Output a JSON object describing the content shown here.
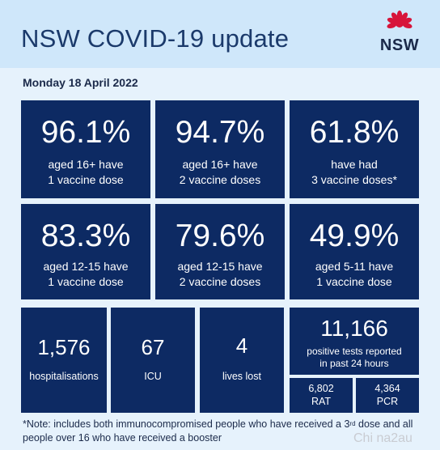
{
  "header": {
    "title": "NSW COVID-19 update",
    "logo_text": "NSW"
  },
  "date": "Monday 18 April 2022",
  "vaccination_tiles": [
    {
      "value": "96.1%",
      "caption": "aged 16+ have\n1 vaccine dose"
    },
    {
      "value": "94.7%",
      "caption": "aged 16+ have\n2 vaccine doses"
    },
    {
      "value": "61.8%",
      "caption": "have had\n3 vaccine doses*"
    },
    {
      "value": "83.3%",
      "caption": "aged 12-15 have\n1 vaccine dose"
    },
    {
      "value": "79.6%",
      "caption": "aged 12-15 have\n2 vaccine doses"
    },
    {
      "value": "49.9%",
      "caption": "aged 5-11 have\n1 vaccine dose"
    }
  ],
  "stats": {
    "hospitalisations": {
      "value": "1,576",
      "label": "hospitalisations"
    },
    "icu": {
      "value": "67",
      "label": "ICU"
    },
    "deaths": {
      "value": "4",
      "label": "lives lost"
    },
    "positive_tests": {
      "value": "11,166",
      "label": "positive tests reported\nin past 24 hours"
    },
    "rat": {
      "value": "6,802",
      "label": "RAT"
    },
    "pcr": {
      "value": "4,364",
      "label": "PCR"
    }
  },
  "footnote": {
    "part1": "*Note: includes both immunocompromised people who have received a 3",
    "superscript": "rd",
    "part2": " dose and all people over 16 who have received a booster"
  },
  "watermark": "Chi na2au",
  "colors": {
    "banner": "#cfe7fa",
    "panel": "#e6f2fc",
    "tile": "#0d2a63",
    "title": "#1b3a6b",
    "waratah_red": "#d7153a"
  }
}
